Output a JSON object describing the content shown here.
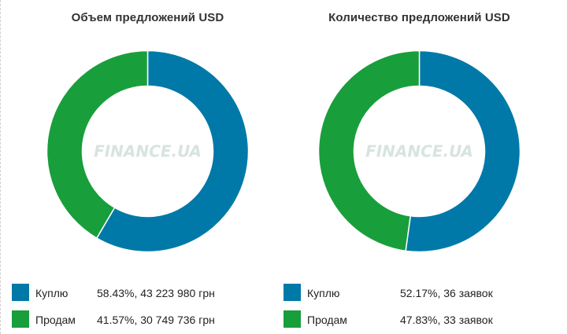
{
  "chart_data": [
    {
      "type": "pie",
      "title": "Объем предложений USD",
      "categories": [
        "Куплю",
        "Продам"
      ],
      "values": [
        58.43,
        41.57
      ],
      "value_labels": [
        "58.43%, 43 223 980 грн",
        "41.57%, 30 749 736 грн"
      ],
      "colors": [
        "#0079a8",
        "#199e3c"
      ],
      "watermark": "FINANCE.UA",
      "legend_position": "bottom"
    },
    {
      "type": "pie",
      "title": "Количество предложений USD",
      "categories": [
        "Куплю",
        "Продам"
      ],
      "values": [
        52.17,
        47.83
      ],
      "value_labels": [
        "52.17%, 36 заявок",
        "47.83%, 33 заявок"
      ],
      "colors": [
        "#0079a8",
        "#199e3c"
      ],
      "watermark": "FINANCE.UA",
      "legend_position": "bottom"
    }
  ]
}
